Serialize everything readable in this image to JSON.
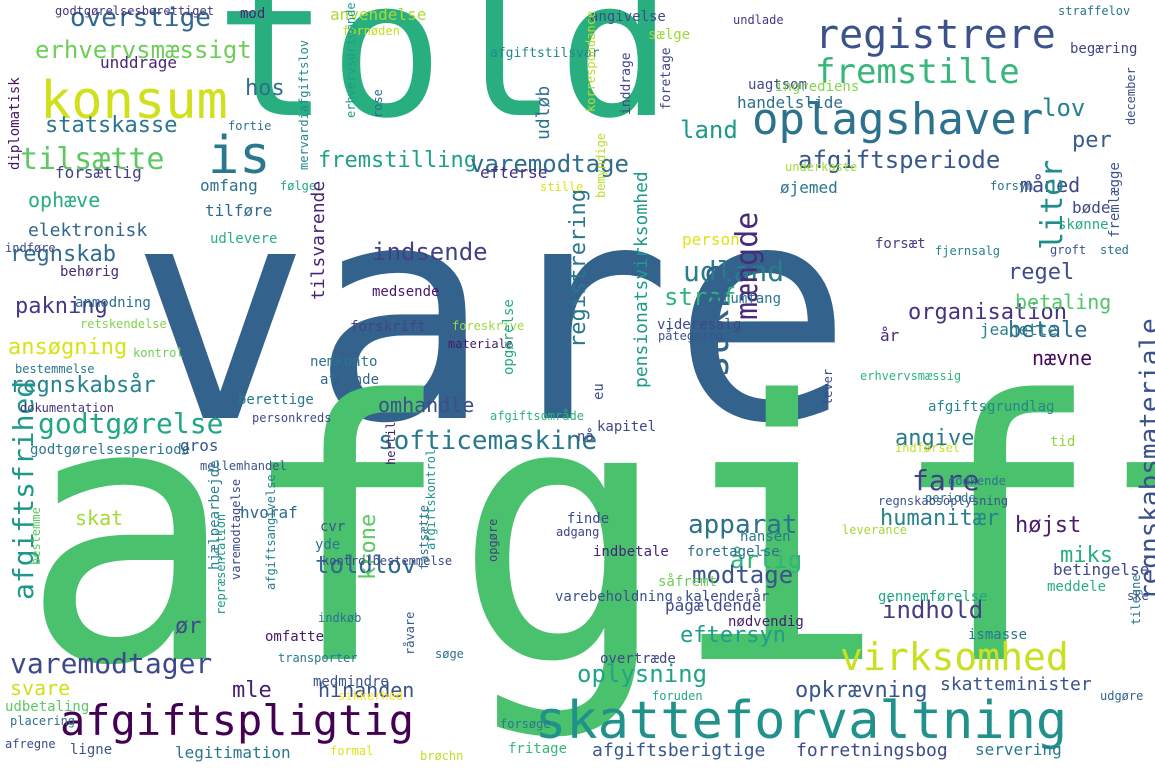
{
  "words": [
    {
      "text": "vare",
      "color": "#33638d"
    },
    {
      "text": "afgift",
      "color": "#4ac16d"
    },
    {
      "text": "told",
      "color": "#29af7f"
    },
    {
      "text": "konsum",
      "color": "#d0e11c"
    },
    {
      "text": "is",
      "color": "#2a788e"
    },
    {
      "text": "registrere",
      "color": "#3b528b"
    },
    {
      "text": "oplagshaver",
      "color": "#2c728e"
    },
    {
      "text": "fremstille",
      "color": "#35b779"
    },
    {
      "text": "skatteforvaltning",
      "color": "#21918c"
    },
    {
      "text": "afgiftspligtig",
      "color": "#440154"
    },
    {
      "text": "virksomhed",
      "color": "#c8e020"
    },
    {
      "text": "varemodtager",
      "color": "#3e4989"
    },
    {
      "text": "softicemaskine",
      "color": "#2a788e"
    },
    {
      "text": "godtgørelse",
      "color": "#22a785"
    },
    {
      "text": "tilsætte",
      "color": "#5ec962"
    },
    {
      "text": "overstige",
      "color": "#31688e"
    },
    {
      "text": "erhvervsmæssigt",
      "color": "#6ece58"
    },
    {
      "text": "land",
      "color": "#1f9a8a"
    },
    {
      "text": "statskasse",
      "color": "#2a768e"
    },
    {
      "text": "hos",
      "color": "#2d708e"
    },
    {
      "text": "lov",
      "color": "#26828e"
    },
    {
      "text": "per",
      "color": "#365c8d"
    },
    {
      "text": "afgiftsperiode",
      "color": "#38588c"
    },
    {
      "text": "fremstilling",
      "color": "#1fa187"
    },
    {
      "text": "varemodtage",
      "color": "#2e6f8e"
    },
    {
      "text": "udland",
      "color": "#287c8e"
    },
    {
      "text": "indsende",
      "color": "#424086"
    },
    {
      "text": "regnskab",
      "color": "#2f6c8e"
    },
    {
      "text": "ophæve",
      "color": "#26ad81"
    },
    {
      "text": "elektronisk",
      "color": "#30698e"
    },
    {
      "text": "pakning",
      "color": "#443a83"
    },
    {
      "text": "straf",
      "color": "#2fb47c"
    },
    {
      "text": "organisation",
      "color": "#46337f"
    },
    {
      "text": "regel",
      "color": "#3e4c8a"
    },
    {
      "text": "betaling",
      "color": "#52c569"
    },
    {
      "text": "måned",
      "color": "#3f4788"
    },
    {
      "text": "liter",
      "color": "#228c8d"
    },
    {
      "text": "ansøgning",
      "color": "#d8e219"
    },
    {
      "text": "regnskabsår",
      "color": "#25848e"
    },
    {
      "text": "sukke",
      "color": "#33638d"
    },
    {
      "text": "mængde",
      "color": "#472c7a"
    },
    {
      "text": "betale",
      "color": "#2f6b8e"
    },
    {
      "text": "nævne",
      "color": "#46085c"
    },
    {
      "text": "omhandle",
      "color": "#3d4e8a"
    },
    {
      "text": "angive",
      "color": "#2a788e"
    },
    {
      "text": "fare",
      "color": "#433e85"
    },
    {
      "text": "apparat",
      "color": "#2c718e"
    },
    {
      "text": "årlig",
      "color": "#31b57b"
    },
    {
      "text": "højst",
      "color": "#481b6d"
    },
    {
      "text": "humanitær",
      "color": "#26828e"
    },
    {
      "text": "miks",
      "color": "#29af7f"
    },
    {
      "text": "skat",
      "color": "#a2da37"
    },
    {
      "text": "toldlov",
      "color": "#306a8e"
    },
    {
      "text": "modtage",
      "color": "#3b528b"
    },
    {
      "text": "indhold",
      "color": "#433d84"
    },
    {
      "text": "ør",
      "color": "#3e4989"
    },
    {
      "text": "hinanden",
      "color": "#3a538b"
    },
    {
      "text": "mle",
      "color": "#482071"
    },
    {
      "text": "oplysning",
      "color": "#20a486"
    },
    {
      "text": "eftersyn",
      "color": "#1f9e89"
    },
    {
      "text": "opkrævning",
      "color": "#39558c"
    },
    {
      "text": "skatteminister",
      "color": "#3a548c"
    },
    {
      "text": "svare",
      "color": "#cde11d"
    },
    {
      "text": "afgiftsfrihed",
      "color": "#1f988b"
    },
    {
      "text": "krone",
      "color": "#5ec962"
    },
    {
      "text": "regnskabsmateriale",
      "color": "#3b518b"
    },
    {
      "text": "registrering",
      "color": "#2a788e"
    },
    {
      "text": "pensionatsvirksomhed",
      "color": "#1e9b8a"
    },
    {
      "text": "angivelse",
      "color": "#3d4d8a"
    },
    {
      "text": "sælge",
      "color": "#9dd93b"
    },
    {
      "text": "undlade",
      "color": "#443983"
    },
    {
      "text": "begæring",
      "color": "#414487"
    },
    {
      "text": "uagtsom",
      "color": "#3e4a89"
    },
    {
      "text": "ingrediens",
      "color": "#85d54a"
    },
    {
      "text": "fremlægge",
      "color": "#3b528b"
    },
    {
      "text": "handelslide",
      "color": "#2e6e8e"
    },
    {
      "text": "udløb",
      "color": "#2c728e"
    },
    {
      "text": "inddrage",
      "color": "#404688"
    },
    {
      "text": "foretage",
      "color": "#3f4889"
    },
    {
      "text": "afgiftstilsvar",
      "color": "#24878e"
    },
    {
      "text": "unddrage",
      "color": "#482576"
    },
    {
      "text": "mod",
      "color": "#482475"
    },
    {
      "text": "anvendelse",
      "color": "#a8db34"
    },
    {
      "text": "fornøden",
      "color": "#c2df23"
    },
    {
      "text": "straffelov",
      "color": "#2a768e"
    },
    {
      "text": "godtgørelsesberettiget",
      "color": "#46337f"
    },
    {
      "text": "diplomatisk",
      "color": "#481467"
    },
    {
      "text": "rose",
      "color": "#31688e"
    },
    {
      "text": "erhvervsdrivende",
      "color": "#1e9c89"
    },
    {
      "text": "korrespondance",
      "color": "#b5de2b"
    },
    {
      "text": "december",
      "color": "#3c4f8a"
    },
    {
      "text": "efterse",
      "color": "#472e7c"
    },
    {
      "text": "omfang",
      "color": "#2c728e"
    },
    {
      "text": "forsætlig",
      "color": "#433e85"
    },
    {
      "text": "tilføre",
      "color": "#31688e"
    },
    {
      "text": "udlevere",
      "color": "#29af7f"
    },
    {
      "text": "indføre",
      "color": "#3e4a89"
    },
    {
      "text": "behørig",
      "color": "#482878"
    },
    {
      "text": "anmodning",
      "color": "#2e6e8e"
    },
    {
      "text": "retskendelse",
      "color": "#81d34d"
    },
    {
      "text": "følge",
      "color": "#21a685"
    },
    {
      "text": "fortie",
      "color": "#2c738e"
    },
    {
      "text": "mervardiafgiftslov",
      "color": "#23898e"
    },
    {
      "text": "bemyndige",
      "color": "#b8de29"
    },
    {
      "text": "stille",
      "color": "#dde318"
    },
    {
      "text": "underkaste",
      "color": "#a5db36"
    },
    {
      "text": "øjemed",
      "color": "#2a768e"
    },
    {
      "text": "forsyn",
      "color": "#2c728e"
    },
    {
      "text": "bøde",
      "color": "#3e4989"
    },
    {
      "text": "skønne",
      "color": "#25ab82"
    },
    {
      "text": "groft",
      "color": "#3b528b"
    },
    {
      "text": "fjernsalg",
      "color": "#26828e"
    },
    {
      "text": "sted",
      "color": "#2c738e"
    },
    {
      "text": "person",
      "color": "#dde318"
    },
    {
      "text": "forsæt",
      "color": "#433e85"
    },
    {
      "text": "tilsvarende",
      "color": "#482475"
    },
    {
      "text": "medsende",
      "color": "#481769"
    },
    {
      "text": "rumfang",
      "color": "#2a788e"
    },
    {
      "text": "forskrift",
      "color": "#414487"
    },
    {
      "text": "videresalg",
      "color": "#3e4989"
    },
    {
      "text": "foreskrive",
      "color": "#9bd93c"
    },
    {
      "text": "materiale",
      "color": "#481a6c"
    },
    {
      "text": "påtegning",
      "color": "#3b528b"
    },
    {
      "text": "år",
      "color": "#472d7b"
    },
    {
      "text": "jeanette",
      "color": "#26828e"
    },
    {
      "text": "bestemmelse",
      "color": "#2a788e"
    },
    {
      "text": "kontrol",
      "color": "#6ece58"
    },
    {
      "text": "nemkonto",
      "color": "#2c728e"
    },
    {
      "text": "afsende",
      "color": "#31688e"
    },
    {
      "text": "opgørelse",
      "color": "#22a884"
    },
    {
      "text": "lever",
      "color": "#3e4989"
    },
    {
      "text": "erhvervsmæssig",
      "color": "#2fb47c"
    },
    {
      "text": "berettige",
      "color": "#2a788e"
    },
    {
      "text": "personkreds",
      "color": "#3e4c8a"
    },
    {
      "text": "dokumentation",
      "color": "#46337f"
    },
    {
      "text": "afgiftsområde",
      "color": "#2fb47c"
    },
    {
      "text": "hertil",
      "color": "#481b6d"
    },
    {
      "text": "eu",
      "color": "#3d4e8a"
    },
    {
      "text": "kapitel",
      "color": "#3e4989"
    },
    {
      "text": "afgiftsgrundlag",
      "color": "#24868e"
    },
    {
      "text": "nå",
      "color": "#3e4a89"
    },
    {
      "text": "godtgørelsesperiode",
      "color": "#2a788e"
    },
    {
      "text": "gros",
      "color": "#38588c"
    },
    {
      "text": "mellemhandel",
      "color": "#3b528b"
    },
    {
      "text": "indførsel",
      "color": "#c8e020"
    },
    {
      "text": "tid",
      "color": "#8fd744"
    },
    {
      "text": "godkende",
      "color": "#2c728e"
    },
    {
      "text": "hvoraf",
      "color": "#2f6b8e"
    },
    {
      "text": "cvr",
      "color": "#3b528b"
    },
    {
      "text": "finde",
      "color": "#3e4a89"
    },
    {
      "text": "adgang",
      "color": "#404588"
    },
    {
      "text": "opgøre",
      "color": "#433e85"
    },
    {
      "text": "afgiftskontrol",
      "color": "#1f968b"
    },
    {
      "text": "hansen",
      "color": "#2a788e"
    },
    {
      "text": "foretagelse",
      "color": "#2c728e"
    },
    {
      "text": "periode",
      "color": "#2a768e"
    },
    {
      "text": "regnskabsoplysning",
      "color": "#3b528b"
    },
    {
      "text": "leverance",
      "color": "#a2da37"
    },
    {
      "text": "yde",
      "color": "#2a788e"
    },
    {
      "text": "kontrolbestemmelse",
      "color": "#3e4989"
    },
    {
      "text": "indbetale",
      "color": "#482475"
    },
    {
      "text": "såfremt",
      "color": "#6ece58"
    },
    {
      "text": "pågældende",
      "color": "#3e4989"
    },
    {
      "text": "betingelse",
      "color": "#3e4989"
    },
    {
      "text": "meddele",
      "color": "#29af7f"
    },
    {
      "text": "hjælpearbejde",
      "color": "#26828e"
    },
    {
      "text": "fastsætte",
      "color": "#2c728e"
    },
    {
      "text": "varebeholdning",
      "color": "#3b528b"
    },
    {
      "text": "kalenderår",
      "color": "#3d4e8a"
    },
    {
      "text": "gennemførelse",
      "color": "#21a685"
    },
    {
      "text": "repræsentation",
      "color": "#1f9a8a"
    },
    {
      "text": "varemodtagelse",
      "color": "#3e4a89"
    },
    {
      "text": "afgiftsangivelse",
      "color": "#26828e"
    },
    {
      "text": "nødvendig",
      "color": "#481b6d"
    },
    {
      "text": "bestemme",
      "color": "#5ec962"
    },
    {
      "text": "indkøb",
      "color": "#2c728e"
    },
    {
      "text": "omfatte",
      "color": "#48186a"
    },
    {
      "text": "råvare",
      "color": "#38588c"
    },
    {
      "text": "overtræde",
      "color": "#3e4989"
    },
    {
      "text": "ismasse",
      "color": "#2a788e"
    },
    {
      "text": "ske",
      "color": "#3e4989"
    },
    {
      "text": "tilegne",
      "color": "#2c728e"
    },
    {
      "text": "transporter",
      "color": "#2a788e"
    },
    {
      "text": "søge",
      "color": "#2c728e"
    },
    {
      "text": "medmindre",
      "color": "#3b528b"
    },
    {
      "text": "sikkerhed",
      "color": "#fde725"
    },
    {
      "text": "foruden",
      "color": "#22a785"
    },
    {
      "text": "udgøre",
      "color": "#33638d"
    },
    {
      "text": "udbetaling",
      "color": "#5ec962"
    },
    {
      "text": "placering",
      "color": "#2c728e"
    },
    {
      "text": "forsøge",
      "color": "#2a788e"
    },
    {
      "text": "afregne",
      "color": "#3e4989"
    },
    {
      "text": "ligne",
      "color": "#3b528b"
    },
    {
      "text": "legitimation",
      "color": "#2a788e"
    },
    {
      "text": "formal",
      "color": "#dde318"
    },
    {
      "text": "brøchn",
      "color": "#c2df23"
    },
    {
      "text": "fritage",
      "color": "#35b779"
    },
    {
      "text": "afgiftsberigtige",
      "color": "#38588c"
    },
    {
      "text": "forretningsbog",
      "color": "#3e4989"
    },
    {
      "text": "servering",
      "color": "#2a788e"
    }
  ]
}
